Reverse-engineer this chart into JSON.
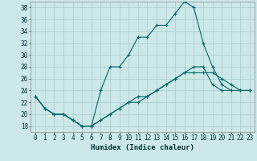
{
  "xlabel": "Humidex (Indice chaleur)",
  "bg_color": "#cce8e8",
  "grid_color": "#b0d0d0",
  "line_color": "#006868",
  "xlim": [
    -0.5,
    23.5
  ],
  "ylim": [
    17,
    39
  ],
  "xticks": [
    0,
    1,
    2,
    3,
    4,
    5,
    6,
    7,
    8,
    9,
    10,
    11,
    12,
    13,
    14,
    15,
    16,
    17,
    18,
    19,
    20,
    21,
    22,
    23
  ],
  "yticks": [
    18,
    20,
    22,
    24,
    26,
    28,
    30,
    32,
    34,
    36,
    38
  ],
  "series": [
    [
      23,
      21,
      20,
      20,
      19,
      18,
      18,
      24,
      28,
      28,
      30,
      33,
      33,
      35,
      35,
      37,
      39,
      38,
      32,
      28,
      25,
      24,
      24,
      24
    ],
    [
      23,
      21,
      20,
      20,
      19,
      18,
      18,
      19,
      20,
      21,
      22,
      23,
      23,
      24,
      25,
      26,
      27,
      28,
      28,
      25,
      24,
      24,
      24,
      24
    ],
    [
      23,
      21,
      20,
      20,
      19,
      18,
      18,
      19,
      20,
      21,
      22,
      22,
      23,
      24,
      25,
      26,
      27,
      27,
      27,
      27,
      26,
      25,
      24,
      24
    ]
  ]
}
